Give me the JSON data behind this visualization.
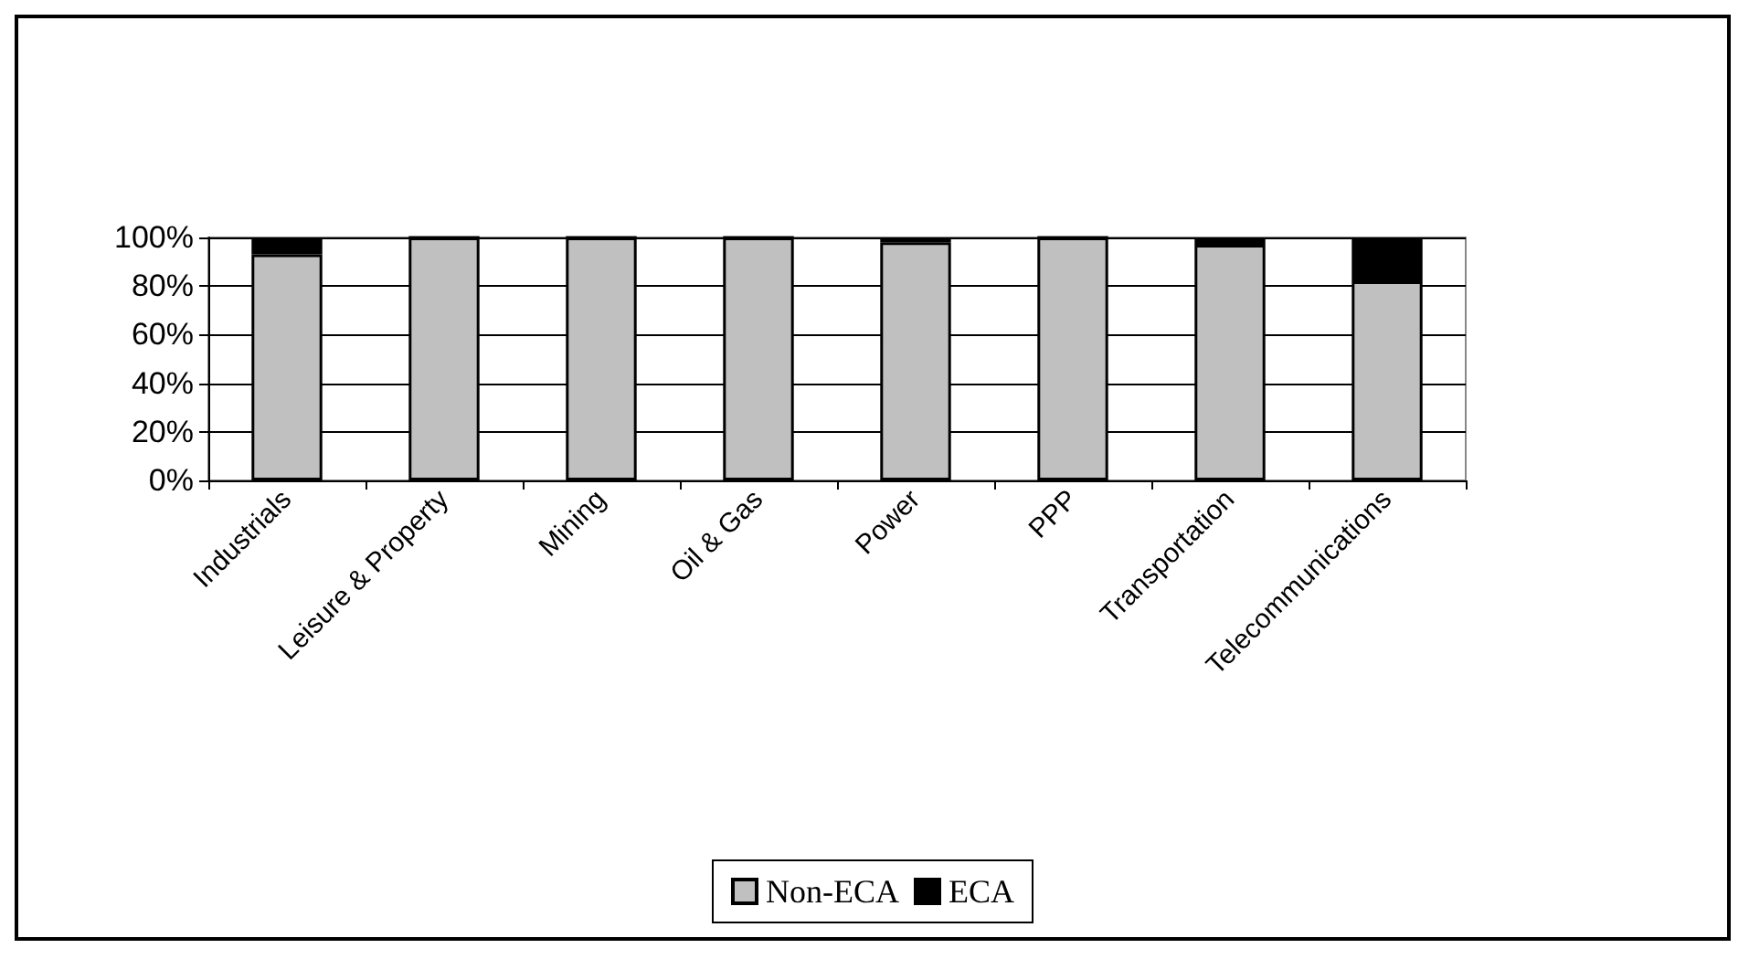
{
  "chart_data": {
    "type": "bar",
    "stacked": true,
    "categories": [
      "Industrials",
      "Leisure & Property",
      "Mining",
      "Oil & Gas",
      "Power",
      "PPP",
      "Transportation",
      "Telecommunications"
    ],
    "series": [
      {
        "name": "Non-ECA",
        "color": "#c0c0c0",
        "values": [
          93,
          100,
          100,
          100,
          98,
          100,
          97,
          82
        ]
      },
      {
        "name": "ECA",
        "color": "#000000",
        "values": [
          7,
          0,
          0,
          0,
          2,
          0,
          3,
          18
        ]
      }
    ],
    "ylim": [
      0,
      100
    ],
    "yticks": [
      {
        "value": 0,
        "label": "0%"
      },
      {
        "value": 20,
        "label": "20%"
      },
      {
        "value": 40,
        "label": "40%"
      },
      {
        "value": 60,
        "label": "60%"
      },
      {
        "value": 80,
        "label": "80%"
      },
      {
        "value": 100,
        "label": "100%"
      }
    ],
    "grid": "y",
    "legend": "bottom"
  }
}
